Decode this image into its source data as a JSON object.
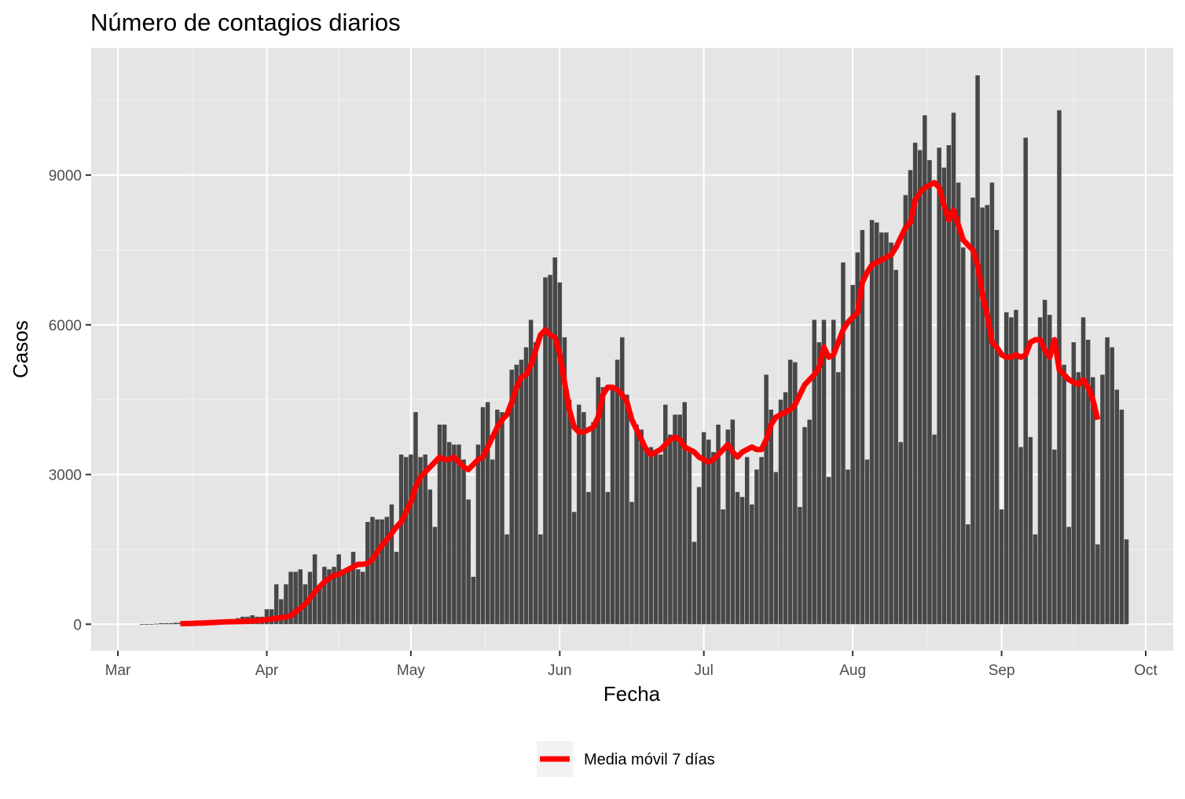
{
  "chart_data": {
    "type": "bar",
    "title": "Número de contagios diarios",
    "xlabel": "Fecha",
    "ylabel": "Casos",
    "x_start": "2020-03-01",
    "x_end": "2020-10-01",
    "ylim": [
      -530,
      11550
    ],
    "y_ticks": [
      0,
      3000,
      6000,
      9000
    ],
    "y_tick_labels": [
      "0",
      "3000",
      "6000",
      "9000"
    ],
    "x_ticks": [
      "2020-03-01",
      "2020-04-01",
      "2020-05-01",
      "2020-06-01",
      "2020-07-01",
      "2020-08-01",
      "2020-09-01",
      "2020-10-01"
    ],
    "x_tick_labels": [
      "Mar",
      "Apr",
      "May",
      "Jun",
      "Jul",
      "Aug",
      "Sep",
      "Oct"
    ],
    "grid": true,
    "legend_position": "bottom",
    "bar_color": "#474747",
    "line_color": "#ff0000",
    "panel_color": "#e5e5e5",
    "series": [
      {
        "type": "bar",
        "start_date": "2020-03-06",
        "values": [
          5,
          5,
          5,
          10,
          20,
          20,
          20,
          30,
          30,
          40,
          50,
          40,
          60,
          50,
          50,
          80,
          70,
          60,
          100,
          80,
          120,
          150,
          150,
          180,
          150,
          150,
          300,
          300,
          800,
          500,
          800,
          1050,
          1050,
          1100,
          800,
          1050,
          1400,
          750,
          1150,
          1100,
          1150,
          1400,
          1100,
          1100,
          1450,
          1100,
          1050,
          2050,
          2150,
          2100,
          2100,
          2150,
          2400,
          1450,
          3400,
          3350,
          3400,
          4250,
          3350,
          3400,
          2700,
          1950,
          4000,
          4000,
          3650,
          3600,
          3600,
          3300,
          2500,
          950,
          3600,
          4350,
          4450,
          3300,
          4300,
          4250,
          1800,
          5100,
          5200,
          5300,
          5550,
          6100,
          5650,
          1800,
          6950,
          7000,
          7350,
          6850,
          5750,
          4500,
          2250,
          4400,
          4250,
          2650,
          4050,
          4950,
          4750,
          2650,
          4700,
          5300,
          5750,
          4600,
          2450,
          4000,
          3900,
          3500,
          3550,
          3450,
          3400,
          4400,
          3800,
          4200,
          4200,
          4450,
          3450,
          1650,
          2750,
          3850,
          3700,
          3450,
          4000,
          2300,
          3900,
          4100,
          2650,
          2550,
          3350,
          2400,
          3100,
          3350,
          5000,
          4300,
          3050,
          4500,
          4650,
          5300,
          5250,
          2350,
          3950,
          4100,
          6100,
          5650,
          6100,
          2950,
          6100,
          5050,
          7250,
          3100,
          6800,
          7450,
          7900,
          3300,
          8100,
          8050,
          7850,
          7850,
          7650,
          7100,
          3650,
          8600,
          9100,
          9650,
          9500,
          10200,
          9300,
          3800,
          9550,
          9150,
          9600,
          10250,
          8850,
          7550,
          2000,
          8550,
          11000,
          8350,
          8400,
          8850,
          7900,
          2300,
          6250,
          6150,
          6300,
          3550,
          9750,
          3750,
          1800,
          6150,
          6500,
          6200,
          3500,
          10300,
          5200,
          1950,
          5650,
          5050,
          6150,
          5700,
          4950,
          1600,
          5000,
          5750,
          5550,
          4700,
          4300,
          1700
        ]
      },
      {
        "type": "line",
        "name": "Media móvil 7 días",
        "start_date": "2020-03-14",
        "values": [
          10,
          12,
          15,
          18,
          22,
          25,
          30,
          35,
          40,
          45,
          48,
          50,
          52,
          55,
          60,
          65,
          70,
          80,
          90,
          105,
          120,
          130,
          145,
          170,
          250,
          320,
          400,
          520,
          650,
          750,
          850,
          920,
          980,
          1000,
          1050,
          1100,
          1150,
          1200,
          1200,
          1220,
          1300,
          1450,
          1580,
          1700,
          1820,
          1950,
          2050,
          2250,
          2450,
          2750,
          2950,
          3050,
          3150,
          3250,
          3350,
          3300,
          3300,
          3350,
          3250,
          3150,
          3100,
          3200,
          3300,
          3350,
          3550,
          3750,
          3950,
          4100,
          4200,
          4450,
          4750,
          4950,
          5000,
          5200,
          5500,
          5800,
          5900,
          5800,
          5750,
          5400,
          4850,
          4300,
          3950,
          3850,
          3850,
          3900,
          3950,
          4150,
          4600,
          4750,
          4750,
          4700,
          4600,
          4450,
          4100,
          3900,
          3700,
          3500,
          3400,
          3450,
          3500,
          3600,
          3700,
          3750,
          3700,
          3550,
          3500,
          3450,
          3350,
          3300,
          3250,
          3300,
          3400,
          3500,
          3600,
          3450,
          3350,
          3450,
          3500,
          3550,
          3500,
          3500,
          3700,
          4000,
          4150,
          4200,
          4250,
          4300,
          4400,
          4600,
          4800,
          4900,
          5000,
          5150,
          5550,
          5350,
          5400,
          5650,
          5900,
          6050,
          6150,
          6250,
          6850,
          7050,
          7200,
          7250,
          7300,
          7350,
          7400,
          7550,
          7750,
          7950,
          8050,
          8500,
          8650,
          8750,
          8800,
          8850,
          8750,
          8400,
          8100,
          8300,
          8000,
          7700,
          7600,
          7500,
          7200,
          6600,
          6200,
          5650,
          5550,
          5400,
          5350,
          5350,
          5400,
          5350,
          5400,
          5650,
          5700,
          5700,
          5500,
          5350,
          5700,
          5100,
          5000,
          4900,
          4850,
          4800,
          4900,
          4750,
          4500,
          4100
        ]
      }
    ]
  }
}
